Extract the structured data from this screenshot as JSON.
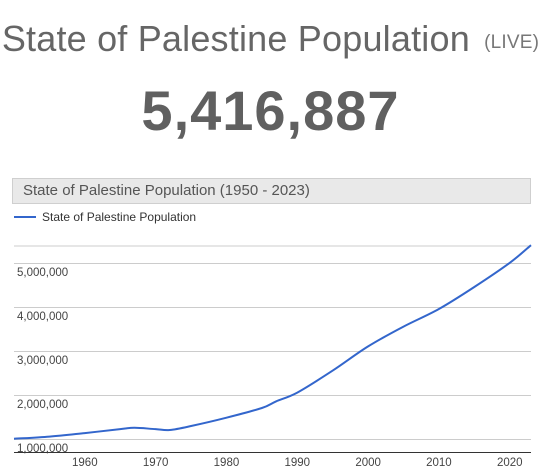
{
  "header": {
    "title": "State of Palestine Population",
    "live_badge": "(LIVE)",
    "counter_value": "5,416,887"
  },
  "chart_data": {
    "type": "line",
    "title": "State of Palestine Population (1950 - 2023)",
    "xlabel": "",
    "ylabel": "",
    "xlim": [
      1950,
      2023
    ],
    "ylim": [
      700000,
      5700000
    ],
    "grid": true,
    "legend_placement": "top-left",
    "x_ticks": [
      1960,
      1970,
      1980,
      1990,
      2000,
      2010,
      2020
    ],
    "y_ticks": [
      1000000,
      2000000,
      3000000,
      4000000,
      5000000
    ],
    "y_tick_labels": [
      "1,000,000",
      "2,000,000",
      "3,000,000",
      "4,000,000",
      "5,000,000"
    ],
    "series": [
      {
        "name": "State of Palestine Population",
        "color": "#3366cc",
        "x": [
          1950,
          1955,
          1960,
          1965,
          1967,
          1970,
          1972,
          1975,
          1980,
          1985,
          1987,
          1990,
          1995,
          2000,
          2005,
          2010,
          2015,
          2020,
          2023
        ],
        "y": [
          1000000,
          1050000,
          1130000,
          1220000,
          1250000,
          1220000,
          1200000,
          1290000,
          1480000,
          1700000,
          1850000,
          2050000,
          2550000,
          3100000,
          3550000,
          3950000,
          4450000,
          5000000,
          5400000
        ]
      }
    ]
  }
}
